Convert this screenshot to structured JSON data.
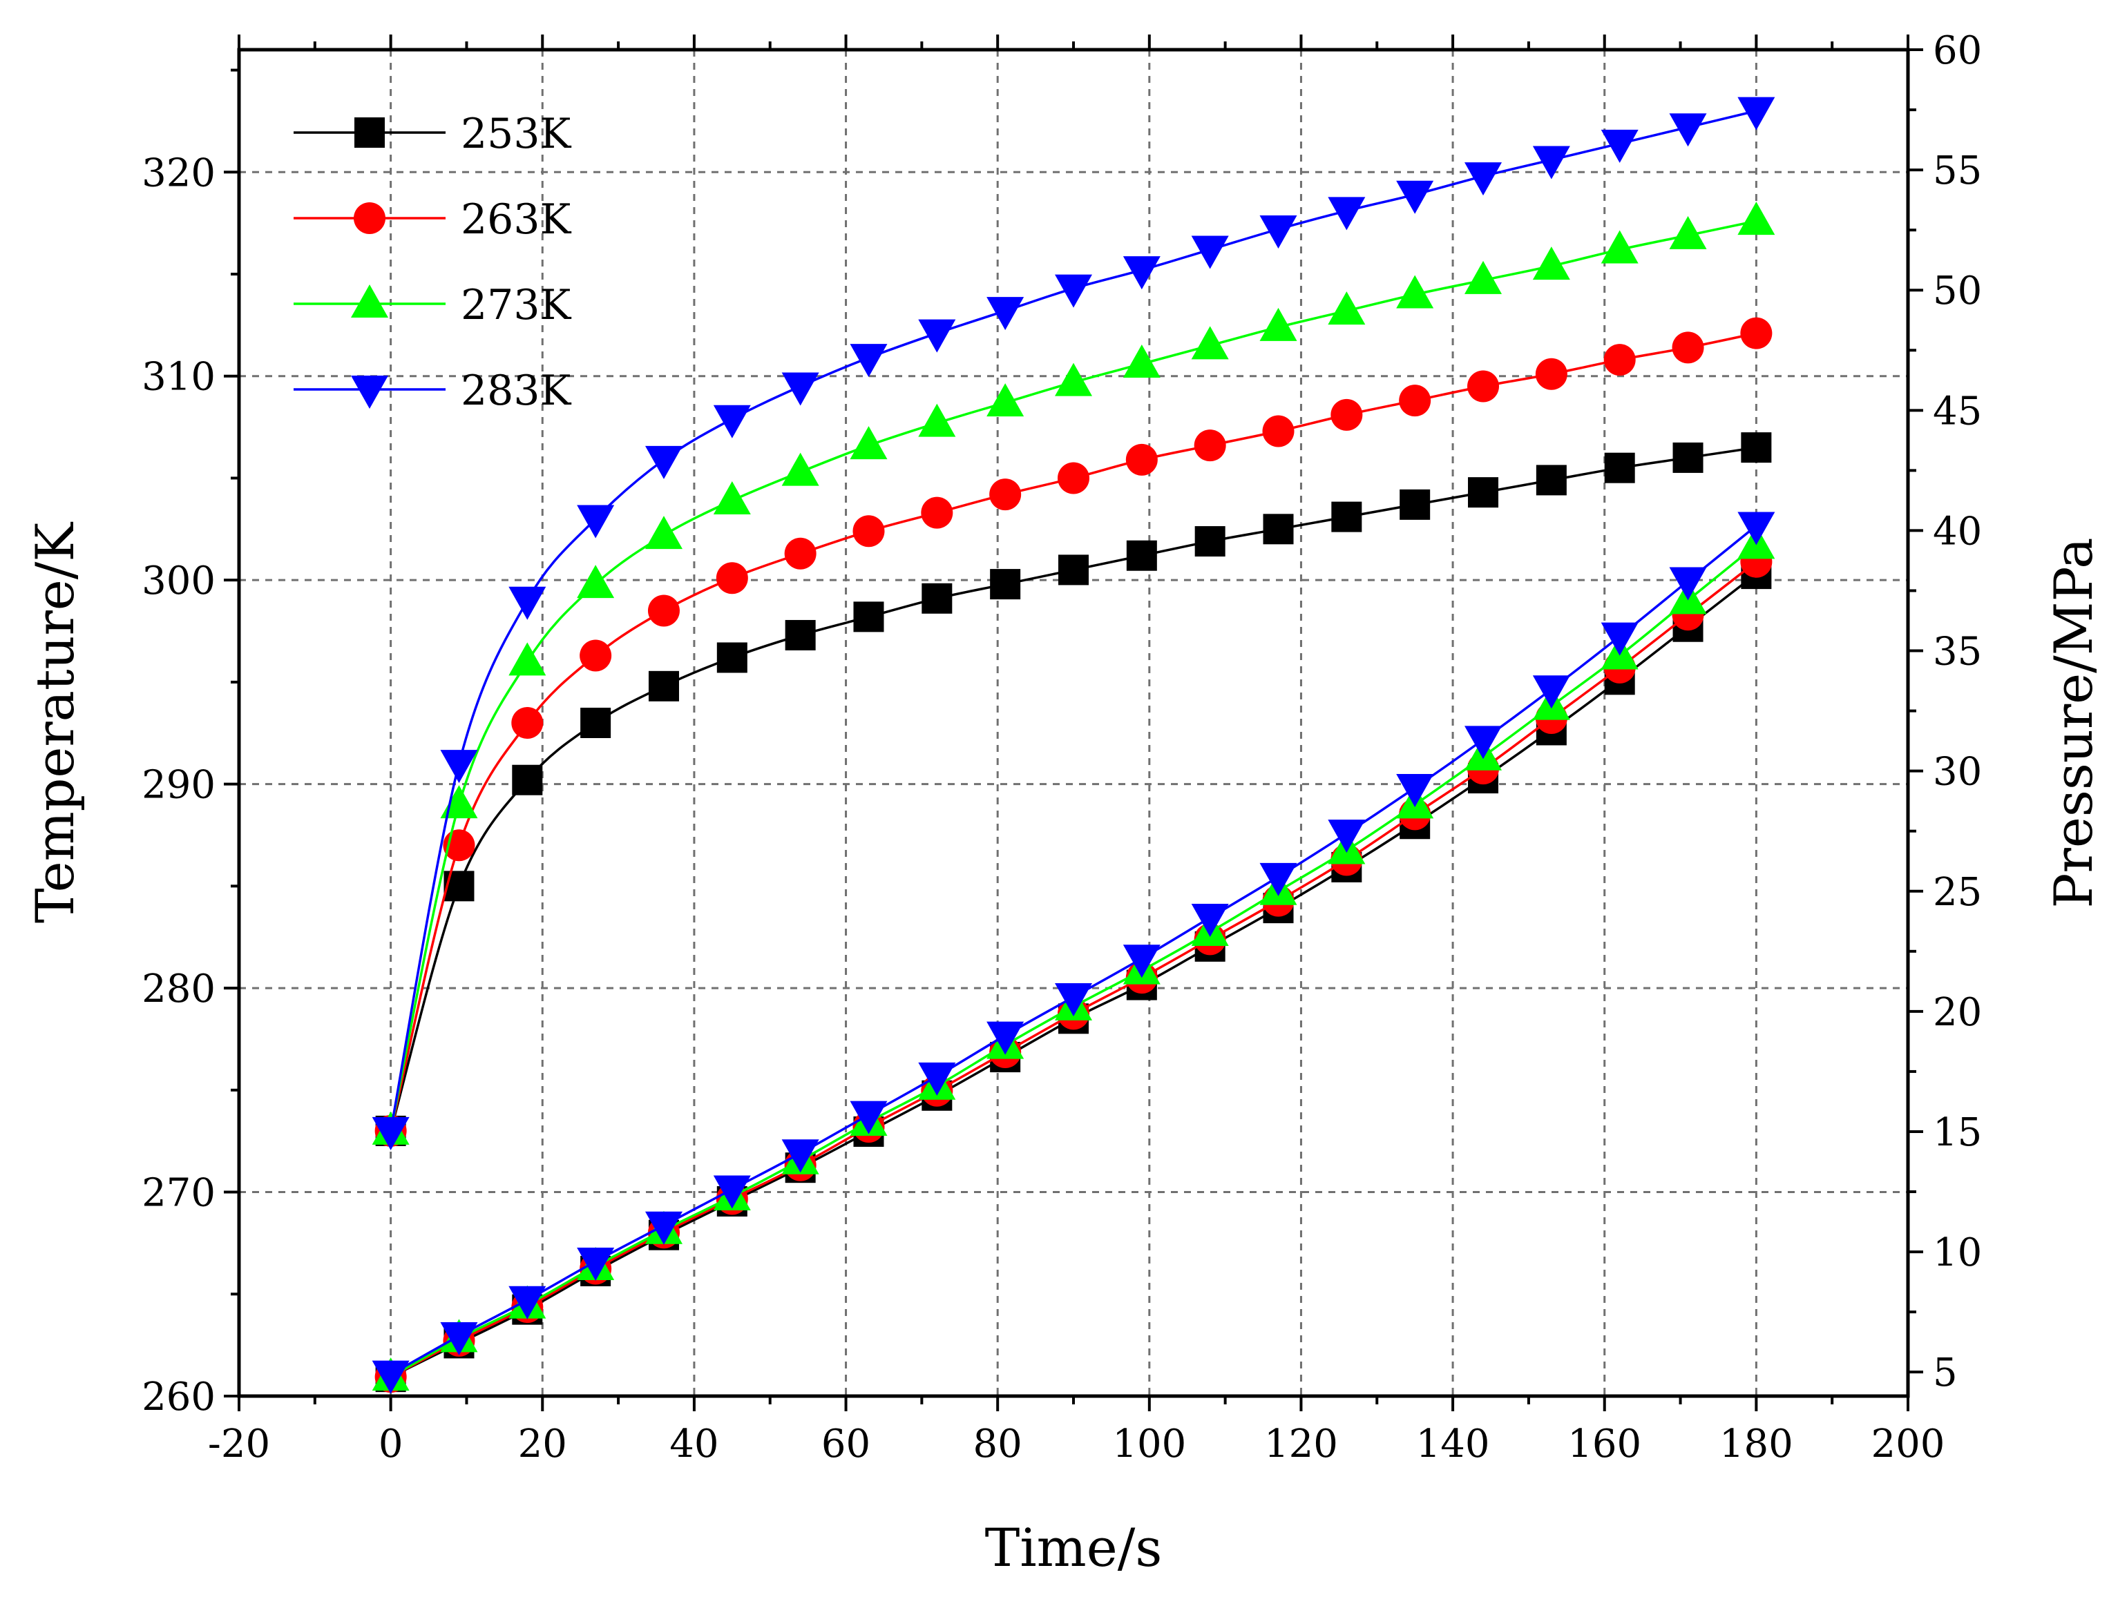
{
  "chart_data": {
    "type": "line",
    "xlabel": "Time/s",
    "ylabel": "Temperature/K",
    "y2label": "Pressure/MPa",
    "xlim": [
      -20,
      200
    ],
    "ylim": [
      260,
      326
    ],
    "y2lim": [
      4,
      60
    ],
    "grid": true,
    "legend_position": "top-left",
    "x_ticks": [
      -20,
      0,
      20,
      40,
      60,
      80,
      100,
      120,
      140,
      160,
      180,
      200
    ],
    "y_ticks": [
      260,
      270,
      280,
      290,
      300,
      310,
      320
    ],
    "y2_ticks": [
      5,
      10,
      15,
      20,
      25,
      30,
      35,
      40,
      45,
      50,
      55,
      60
    ],
    "x": [
      0,
      9,
      18,
      27,
      36,
      45,
      54,
      63,
      72,
      81,
      90,
      99,
      108,
      117,
      126,
      135,
      144,
      153,
      162,
      171,
      180
    ],
    "series": [
      {
        "name": "253K",
        "color": "#000000",
        "marker": "square",
        "temperature": [
          273.0,
          285.0,
          290.2,
          293.0,
          294.8,
          296.2,
          297.3,
          298.2,
          299.1,
          299.8,
          300.5,
          301.2,
          301.9,
          302.5,
          303.1,
          303.7,
          304.3,
          304.9,
          305.5,
          306.0,
          306.5
        ],
        "pressure": [
          4.8,
          6.2,
          7.6,
          9.2,
          10.7,
          12.1,
          13.5,
          15.0,
          16.5,
          18.1,
          19.7,
          21.1,
          22.7,
          24.3,
          26.0,
          27.8,
          29.7,
          31.7,
          33.8,
          36.0,
          38.2
        ]
      },
      {
        "name": "263K",
        "color": "#ff0000",
        "marker": "circle",
        "temperature": [
          273.0,
          287.0,
          293.0,
          296.3,
          298.5,
          300.1,
          301.3,
          302.4,
          303.3,
          304.2,
          305.0,
          305.9,
          306.6,
          307.3,
          308.1,
          308.8,
          309.5,
          310.1,
          310.8,
          311.4,
          312.1
        ],
        "pressure": [
          4.8,
          6.3,
          7.7,
          9.3,
          10.8,
          12.2,
          13.6,
          15.2,
          16.7,
          18.3,
          19.9,
          21.4,
          23.0,
          24.6,
          26.3,
          28.2,
          30.1,
          32.2,
          34.3,
          36.5,
          38.7
        ]
      },
      {
        "name": "273K",
        "color": "#00ff00",
        "marker": "triangle-up",
        "temperature": [
          273.0,
          289.0,
          296.0,
          299.8,
          302.2,
          303.9,
          305.3,
          306.6,
          307.7,
          308.7,
          309.7,
          310.6,
          311.5,
          312.4,
          313.2,
          314.0,
          314.7,
          315.4,
          316.2,
          316.9,
          317.6
        ],
        "pressure": [
          4.8,
          6.4,
          7.8,
          9.4,
          10.9,
          12.3,
          13.8,
          15.4,
          16.9,
          18.6,
          20.2,
          21.7,
          23.3,
          25.0,
          26.7,
          28.6,
          30.6,
          32.7,
          34.8,
          37.1,
          39.4
        ]
      },
      {
        "name": "283K",
        "color": "#0000ff",
        "marker": "triangle-down",
        "temperature": [
          273.0,
          291.0,
          299.0,
          303.0,
          305.9,
          307.9,
          309.5,
          310.9,
          312.1,
          313.2,
          314.3,
          315.2,
          316.2,
          317.2,
          318.1,
          318.9,
          319.8,
          320.6,
          321.4,
          322.2,
          323.0
        ],
        "pressure": [
          4.9,
          6.5,
          8.0,
          9.6,
          11.1,
          12.6,
          14.1,
          15.7,
          17.3,
          19.0,
          20.6,
          22.2,
          23.9,
          25.6,
          27.4,
          29.3,
          31.3,
          33.4,
          35.6,
          37.9,
          40.2
        ]
      }
    ]
  }
}
